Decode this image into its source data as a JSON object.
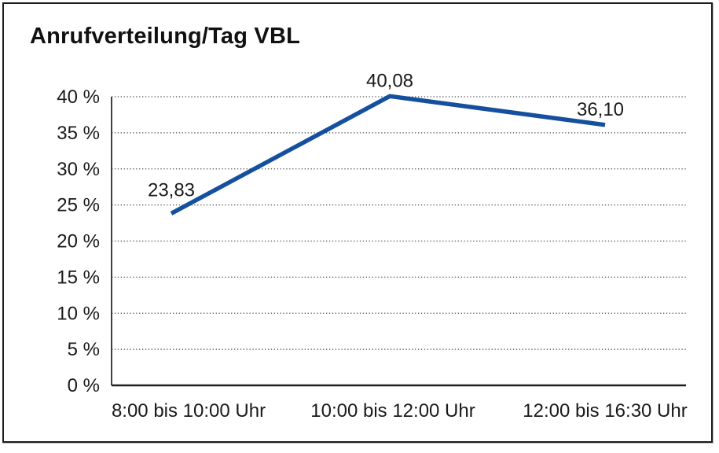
{
  "title": "Anrufverteilung/Tag VBL",
  "chart_data": {
    "type": "line",
    "title": "Anrufverteilung/Tag VBL",
    "categories": [
      "8:00 bis 10:00 Uhr",
      "10:00 bis 12:00 Uhr",
      "12:00 bis 16:30 Uhr"
    ],
    "series": [
      {
        "name": "Anrufverteilung",
        "values": [
          23.83,
          40.08,
          36.1
        ]
      }
    ],
    "values": [
      23.83,
      40.08,
      36.1
    ],
    "point_labels": [
      "23,83",
      "40,08",
      "36,10"
    ],
    "y_tick_values": [
      0,
      5,
      10,
      15,
      20,
      25,
      30,
      35,
      40
    ],
    "y_tick_labels": [
      "0 %",
      "5 %",
      "10 %",
      "15 %",
      "20 %",
      "25 %",
      "30 %",
      "35 %",
      "40 %"
    ],
    "ylim": [
      0,
      40
    ],
    "y_step": 5,
    "xlabel": "",
    "ylabel": "",
    "grid": "horizontal-dotted",
    "legend": "none",
    "line_color": "#15509f",
    "text_color": "#1a1a1a",
    "border_color": "#1c1c1c",
    "background_color": "#ffffff"
  }
}
